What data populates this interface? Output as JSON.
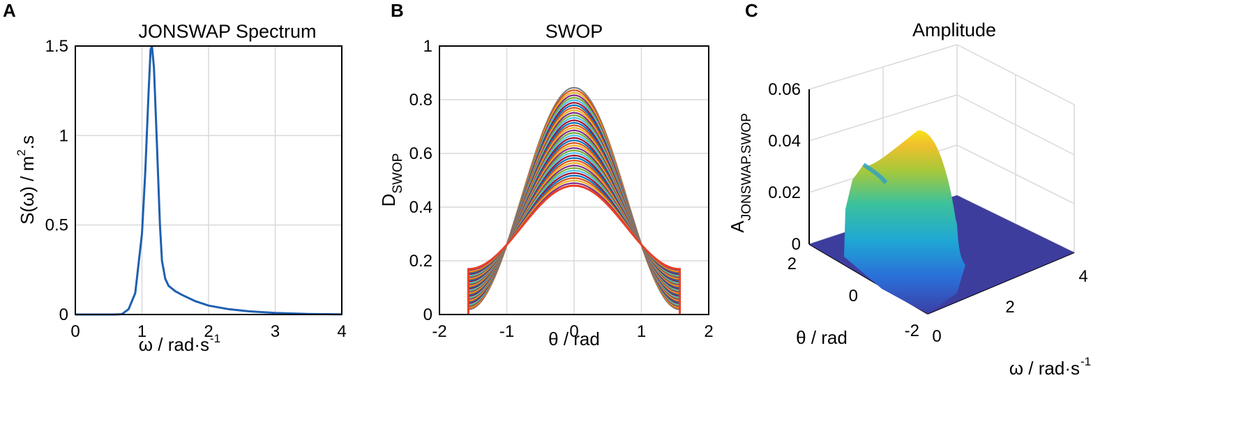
{
  "panels": {
    "a": {
      "letter": "A"
    },
    "b": {
      "letter": "B"
    },
    "c": {
      "letter": "C"
    }
  },
  "chart_data": [
    {
      "type": "line",
      "title": "JONSWAP Spectrum",
      "xlabel": "ω / rad·s",
      "xlabel_sup": "-1",
      "ylabel": "S(ω) / m",
      "ylabel_sup": "2",
      "ylabel_suffix": ".s",
      "xlim": [
        0,
        4
      ],
      "ylim": [
        0,
        1.5
      ],
      "xticks": [
        "0",
        "1",
        "2",
        "3",
        "4"
      ],
      "yticks": [
        "0",
        "0.5",
        "1",
        "1.5"
      ],
      "grid": true,
      "color": "#1f5fb0",
      "series": [
        {
          "name": "S(ω)",
          "x": [
            0,
            0.6,
            0.7,
            0.8,
            0.9,
            1.0,
            1.05,
            1.1,
            1.13,
            1.15,
            1.18,
            1.22,
            1.27,
            1.3,
            1.35,
            1.4,
            1.5,
            1.6,
            1.8,
            2.0,
            2.3,
            2.6,
            3.0,
            3.5,
            4.0
          ],
          "y": [
            0,
            0,
            0.002,
            0.03,
            0.12,
            0.45,
            0.8,
            1.25,
            1.48,
            1.5,
            1.38,
            1.0,
            0.5,
            0.3,
            0.2,
            0.16,
            0.13,
            0.11,
            0.075,
            0.05,
            0.03,
            0.018,
            0.009,
            0.003,
            0.001
          ]
        }
      ]
    },
    {
      "type": "line",
      "title": "SWOP",
      "xlabel": "θ / rad",
      "ylabel": "D",
      "ylabel_sub": "SWOP",
      "xlim": [
        -2,
        2
      ],
      "ylim": [
        0,
        1
      ],
      "xticks": [
        "-2",
        "-1",
        "0",
        "1",
        "2"
      ],
      "yticks": [
        "0",
        "0.2",
        "0.4",
        "0.6",
        "0.8",
        "1"
      ],
      "grid": true,
      "theta_range": [
        -1.5708,
        1.5708
      ],
      "peak_range": [
        0.48,
        0.845
      ],
      "curve_count": 40,
      "series_colors": [
        "#0072bd",
        "#d95319",
        "#edb120",
        "#7e2f8e",
        "#77ac30",
        "#4dbeee",
        "#a2142f"
      ]
    },
    {
      "type": "surface",
      "title": "Amplitude",
      "xlabel": "ω / rad·s",
      "xlabel_sup": "-1",
      "ylabel": "θ / rad",
      "zlabel": "A",
      "zlabel_sub": "JONSWAP.SWOP",
      "xticks": [
        "0",
        "2",
        "4"
      ],
      "yticks": [
        "-2",
        "0",
        "2"
      ],
      "zticks": [
        "0",
        "0.02",
        "0.04",
        "0.06"
      ],
      "zlim": [
        0,
        0.06
      ],
      "peak_value": 0.044
    }
  ]
}
